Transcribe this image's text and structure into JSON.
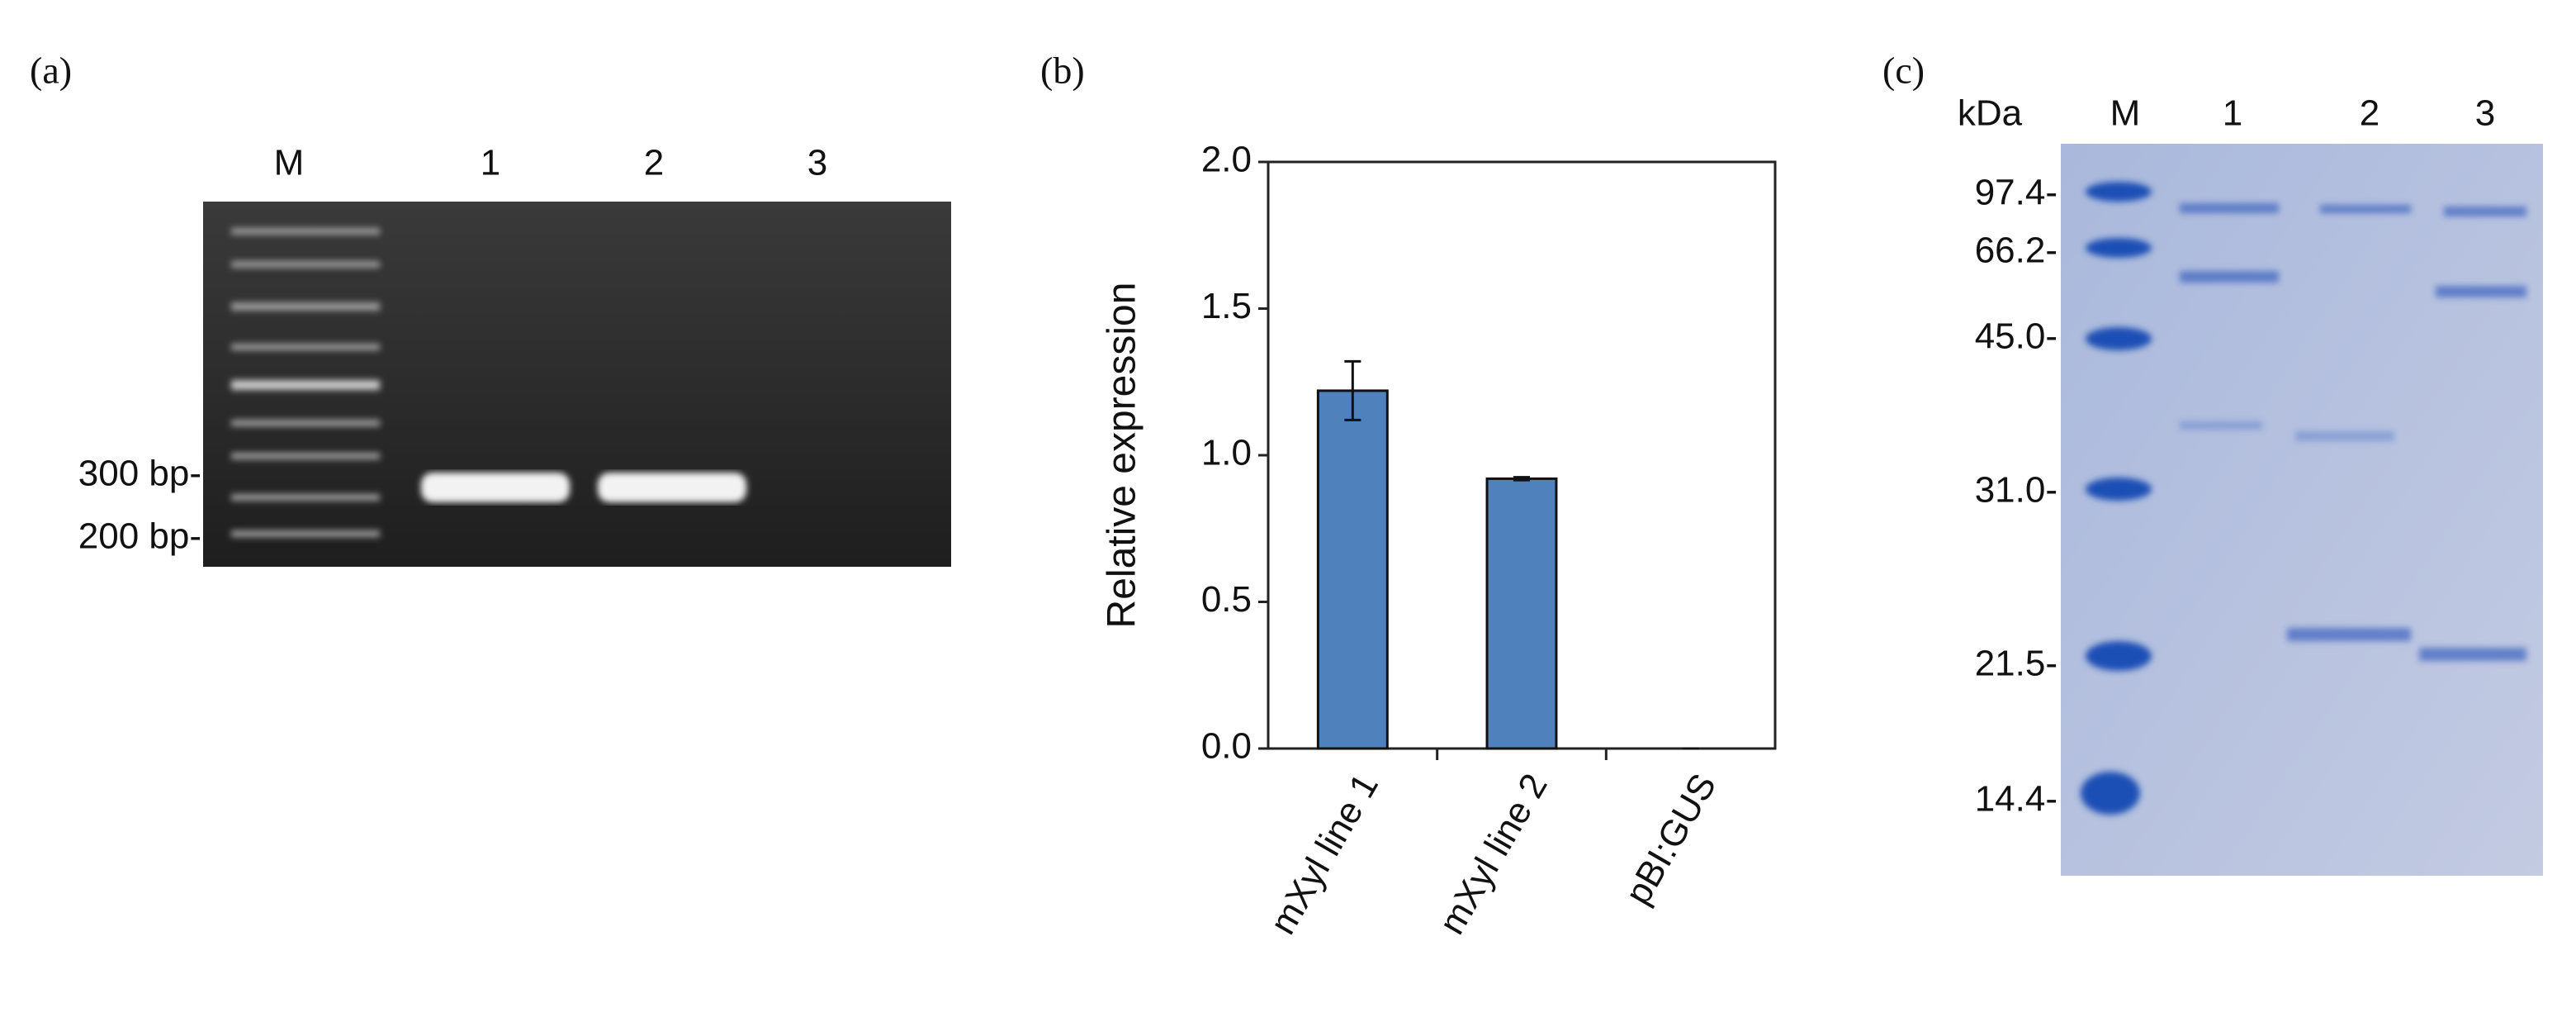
{
  "panel_a": {
    "label": "(a)",
    "lanes": [
      "M",
      "1",
      "2",
      "3"
    ],
    "markers": [
      "300 bp-",
      "200 bp-"
    ]
  },
  "chart_data": {
    "type": "bar",
    "label": "(b)",
    "y_label": "Relative expression",
    "categories": [
      "mXyl line 1",
      "mXyl line 2",
      "pBI:GUS"
    ],
    "values": [
      1.22,
      0.92,
      0
    ],
    "errors": [
      0.1,
      0.005,
      0
    ],
    "color": "#4f81bd",
    "ylim": [
      0,
      2
    ],
    "yticks": [
      {
        "value": 0,
        "label": "0.0"
      },
      0.5,
      {
        "value": 1,
        "label": "1.0"
      },
      1.5,
      {
        "value": 2,
        "label": "2.0"
      }
    ]
  },
  "panel_c": {
    "label": "(c)",
    "unit": "kDa",
    "lanes": [
      "M",
      "1",
      "2",
      "3"
    ],
    "markers": [
      "97.4-",
      "66.2-",
      "45.0-",
      "31.0-",
      "21.5-",
      "14.4-"
    ]
  }
}
